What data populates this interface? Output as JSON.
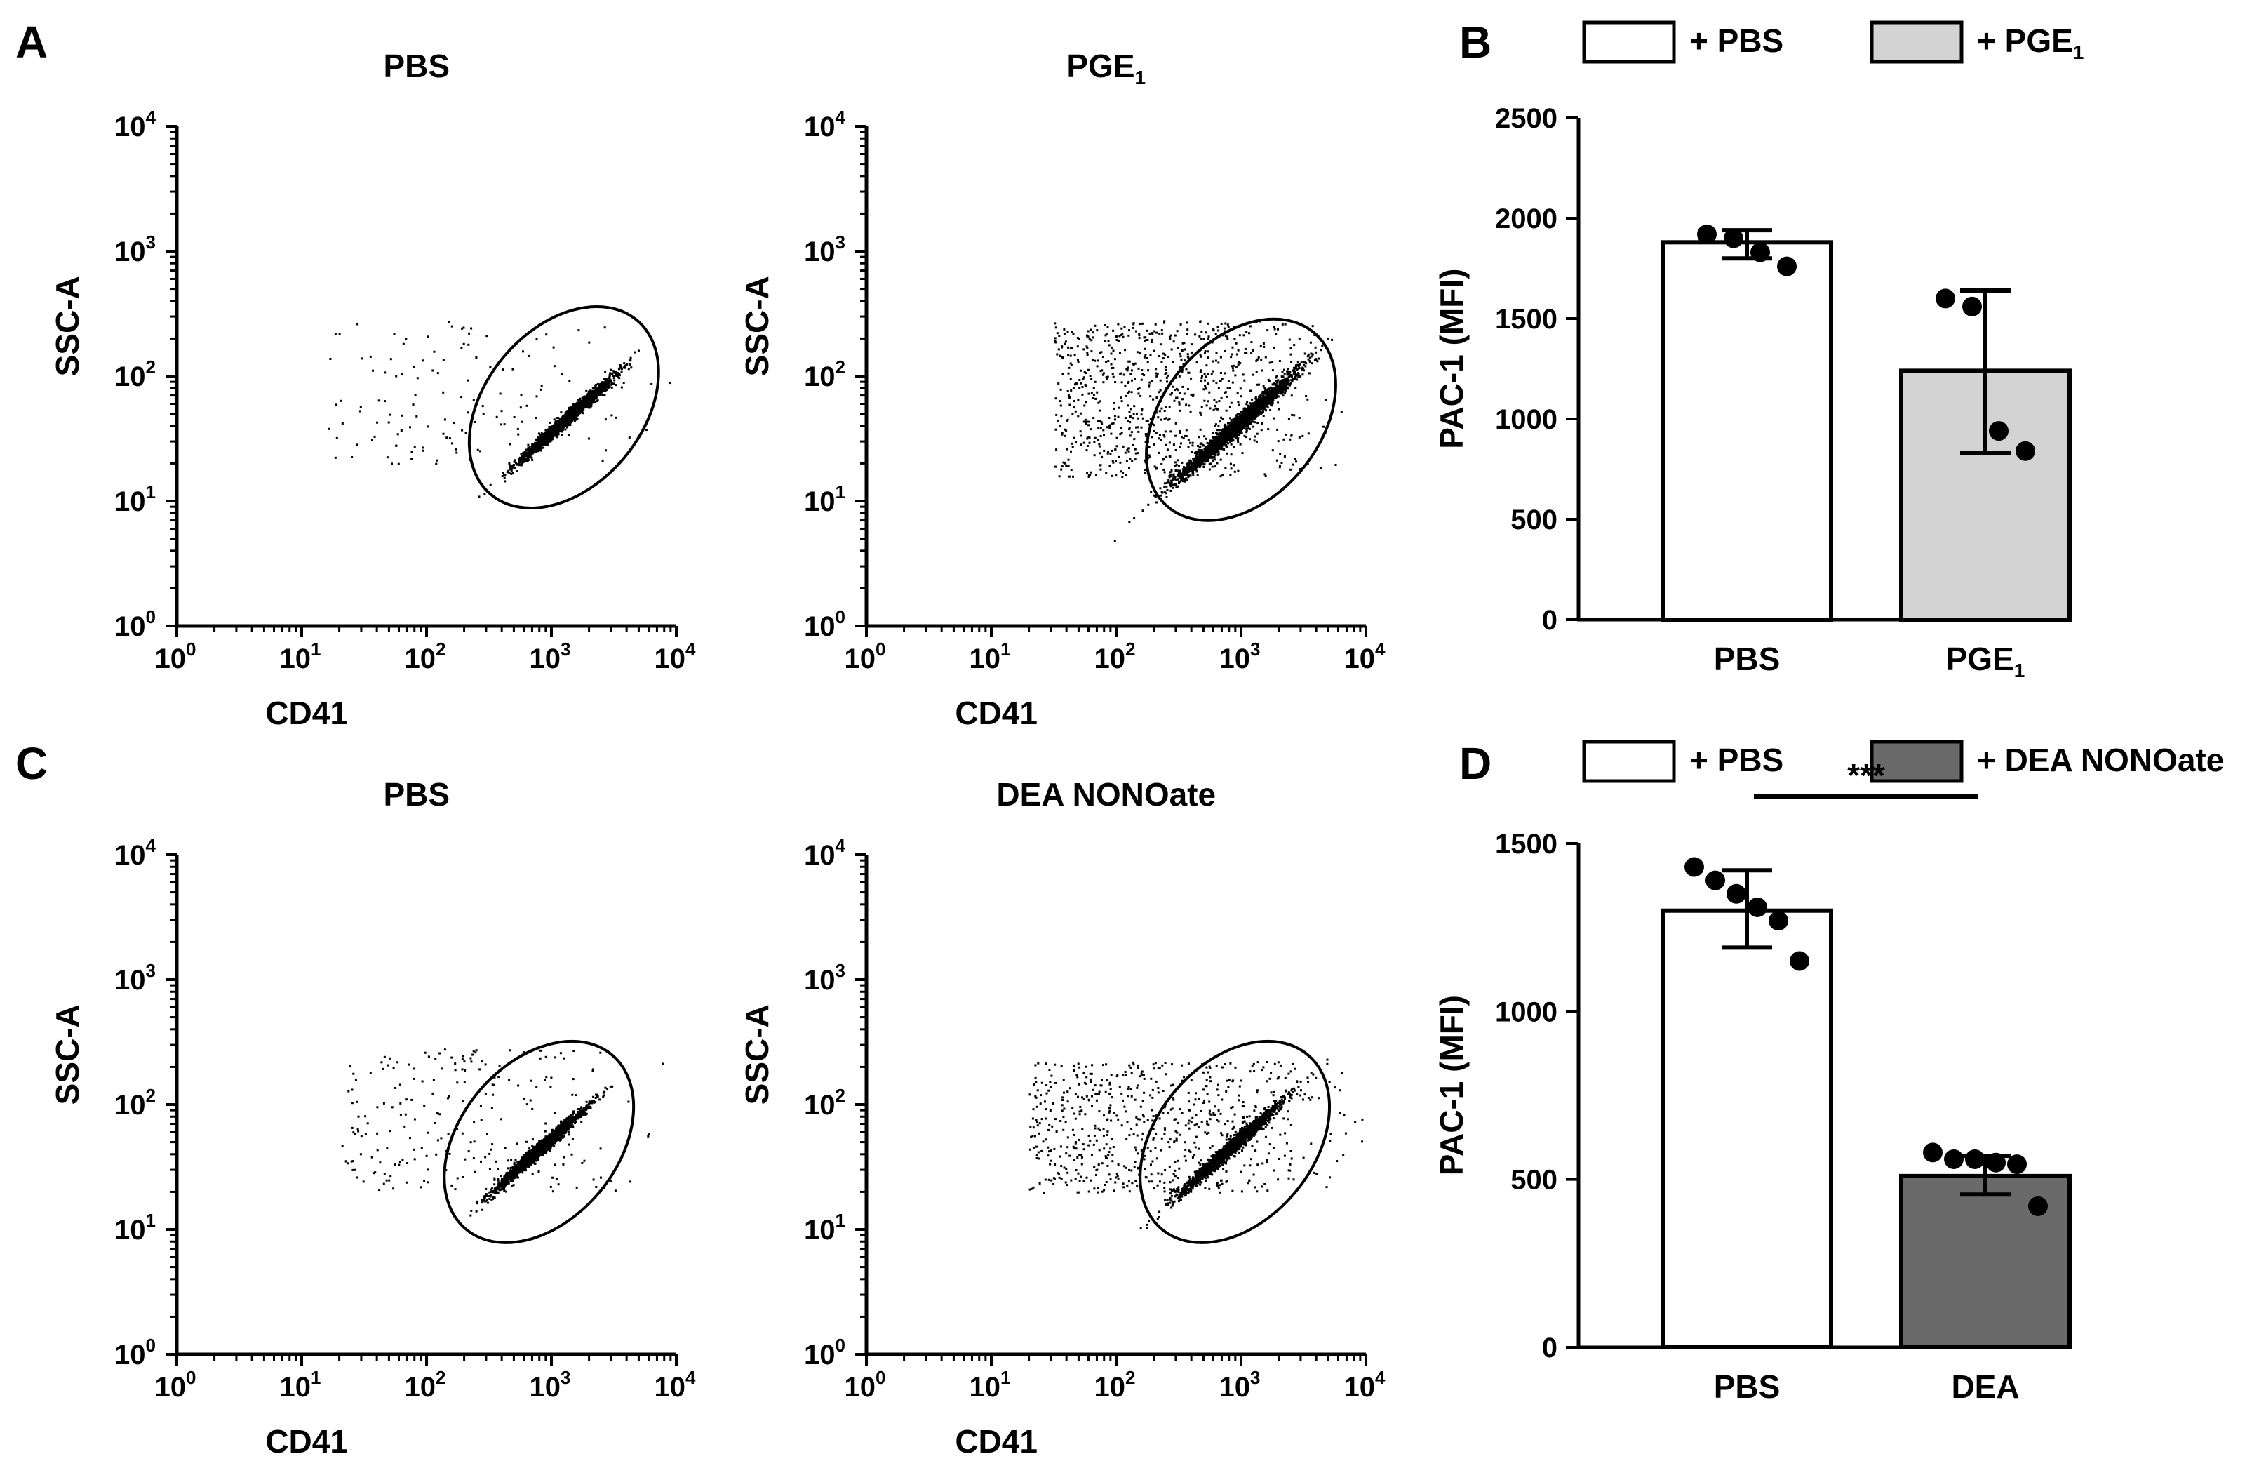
{
  "chart_data": [
    {
      "panel": "A",
      "type": "scatter",
      "subplots": [
        {
          "title": "PBS",
          "xlabel": "CD41",
          "ylabel": "SSC-A",
          "xscale": "log",
          "yscale": "log",
          "xlim": [
            1,
            10000
          ],
          "ylim": [
            1,
            10000
          ],
          "gate_center_log": [
            3.1,
            1.75
          ],
          "cluster_center_log": [
            3.1,
            1.65
          ],
          "cluster_spread_log": 0.18,
          "scattered_range_log": {
            "x": [
              1.2,
              4.0
            ],
            "y": [
              1.3,
              2.45
            ]
          },
          "dense_events": 2600,
          "sparse_events": 140
        },
        {
          "title": "PGE",
          "title_sub": "1",
          "xlabel": "CD41",
          "ylabel": "SSC-A",
          "xscale": "log",
          "yscale": "log",
          "xlim": [
            1,
            10000
          ],
          "ylim": [
            1,
            10000
          ],
          "gate_center_log": [
            3.0,
            1.65
          ],
          "cluster_center_log": [
            2.95,
            1.6
          ],
          "cluster_spread_log": 0.25,
          "scattered_range_log": {
            "x": [
              1.5,
              3.8
            ],
            "y": [
              1.2,
              2.45
            ]
          },
          "dense_events": 2600,
          "sparse_events": 900
        }
      ]
    },
    {
      "panel": "B",
      "type": "bar",
      "categories": [
        "PBS",
        "PGE"
      ],
      "category_subs": [
        "",
        "1"
      ],
      "values": [
        1880,
        1240
      ],
      "error_low": [
        1800,
        830
      ],
      "error_high": [
        1940,
        1640
      ],
      "points": [
        [
          1920,
          1900,
          1830,
          1760
        ],
        [
          1600,
          1560,
          940,
          840
        ]
      ],
      "bar_colors": [
        "#ffffff",
        "#d3d3d3"
      ],
      "legend": [
        "+ PBS",
        "+ PGE"
      ],
      "legend_subs": [
        "",
        "1"
      ],
      "ylabel": "PAC-1 (MFI)",
      "ylim": [
        0,
        2500
      ],
      "yticks": [
        "0",
        "500",
        "1000",
        "1500",
        "2000",
        "2500"
      ]
    },
    {
      "panel": "C",
      "type": "scatter",
      "subplots": [
        {
          "title": "PBS",
          "xlabel": "CD41",
          "ylabel": "SSC-A",
          "xscale": "log",
          "yscale": "log",
          "xlim": [
            1,
            10000
          ],
          "ylim": [
            1,
            10000
          ],
          "gate_center_log": [
            2.9,
            1.7
          ],
          "cluster_center_log": [
            2.9,
            1.65
          ],
          "cluster_spread_log": 0.18,
          "scattered_range_log": {
            "x": [
              1.3,
              4.0
            ],
            "y": [
              1.3,
              2.45
            ]
          },
          "dense_events": 2200,
          "sparse_events": 240
        },
        {
          "title": "DEA NONOate",
          "xlabel": "CD41",
          "ylabel": "SSC-A",
          "xscale": "log",
          "yscale": "log",
          "xlim": [
            1,
            10000
          ],
          "ylim": [
            1,
            10000
          ],
          "gate_center_log": [
            2.95,
            1.7
          ],
          "cluster_center_log": [
            2.9,
            1.65
          ],
          "cluster_spread_log": 0.2,
          "scattered_range_log": {
            "x": [
              1.3,
              4.0
            ],
            "y": [
              1.3,
              2.35
            ]
          },
          "dense_events": 2200,
          "sparse_events": 700
        }
      ]
    },
    {
      "panel": "D",
      "type": "bar",
      "categories": [
        "PBS",
        "DEA"
      ],
      "category_subs": [
        "",
        ""
      ],
      "values": [
        1300,
        510
      ],
      "error_low": [
        1190,
        455
      ],
      "error_high": [
        1420,
        570
      ],
      "points": [
        [
          1430,
          1390,
          1350,
          1310,
          1270,
          1150
        ],
        [
          580,
          560,
          560,
          550,
          545,
          420
        ]
      ],
      "bar_colors": [
        "#ffffff",
        "#6a6a6a"
      ],
      "legend": [
        "+ PBS",
        "+ DEA NONOate"
      ],
      "legend_subs": [
        "",
        ""
      ],
      "ylabel": "PAC-1 (MFI)",
      "ylim": [
        0,
        1500
      ],
      "yticks": [
        "0",
        "500",
        "1000",
        "1500"
      ],
      "significance": "***"
    }
  ],
  "panel_letters": [
    "A",
    "B",
    "C",
    "D"
  ],
  "log_tick_labels": [
    "10",
    "10",
    "10",
    "10",
    "10"
  ],
  "log_tick_exponents": [
    "0",
    "1",
    "2",
    "3",
    "4"
  ]
}
